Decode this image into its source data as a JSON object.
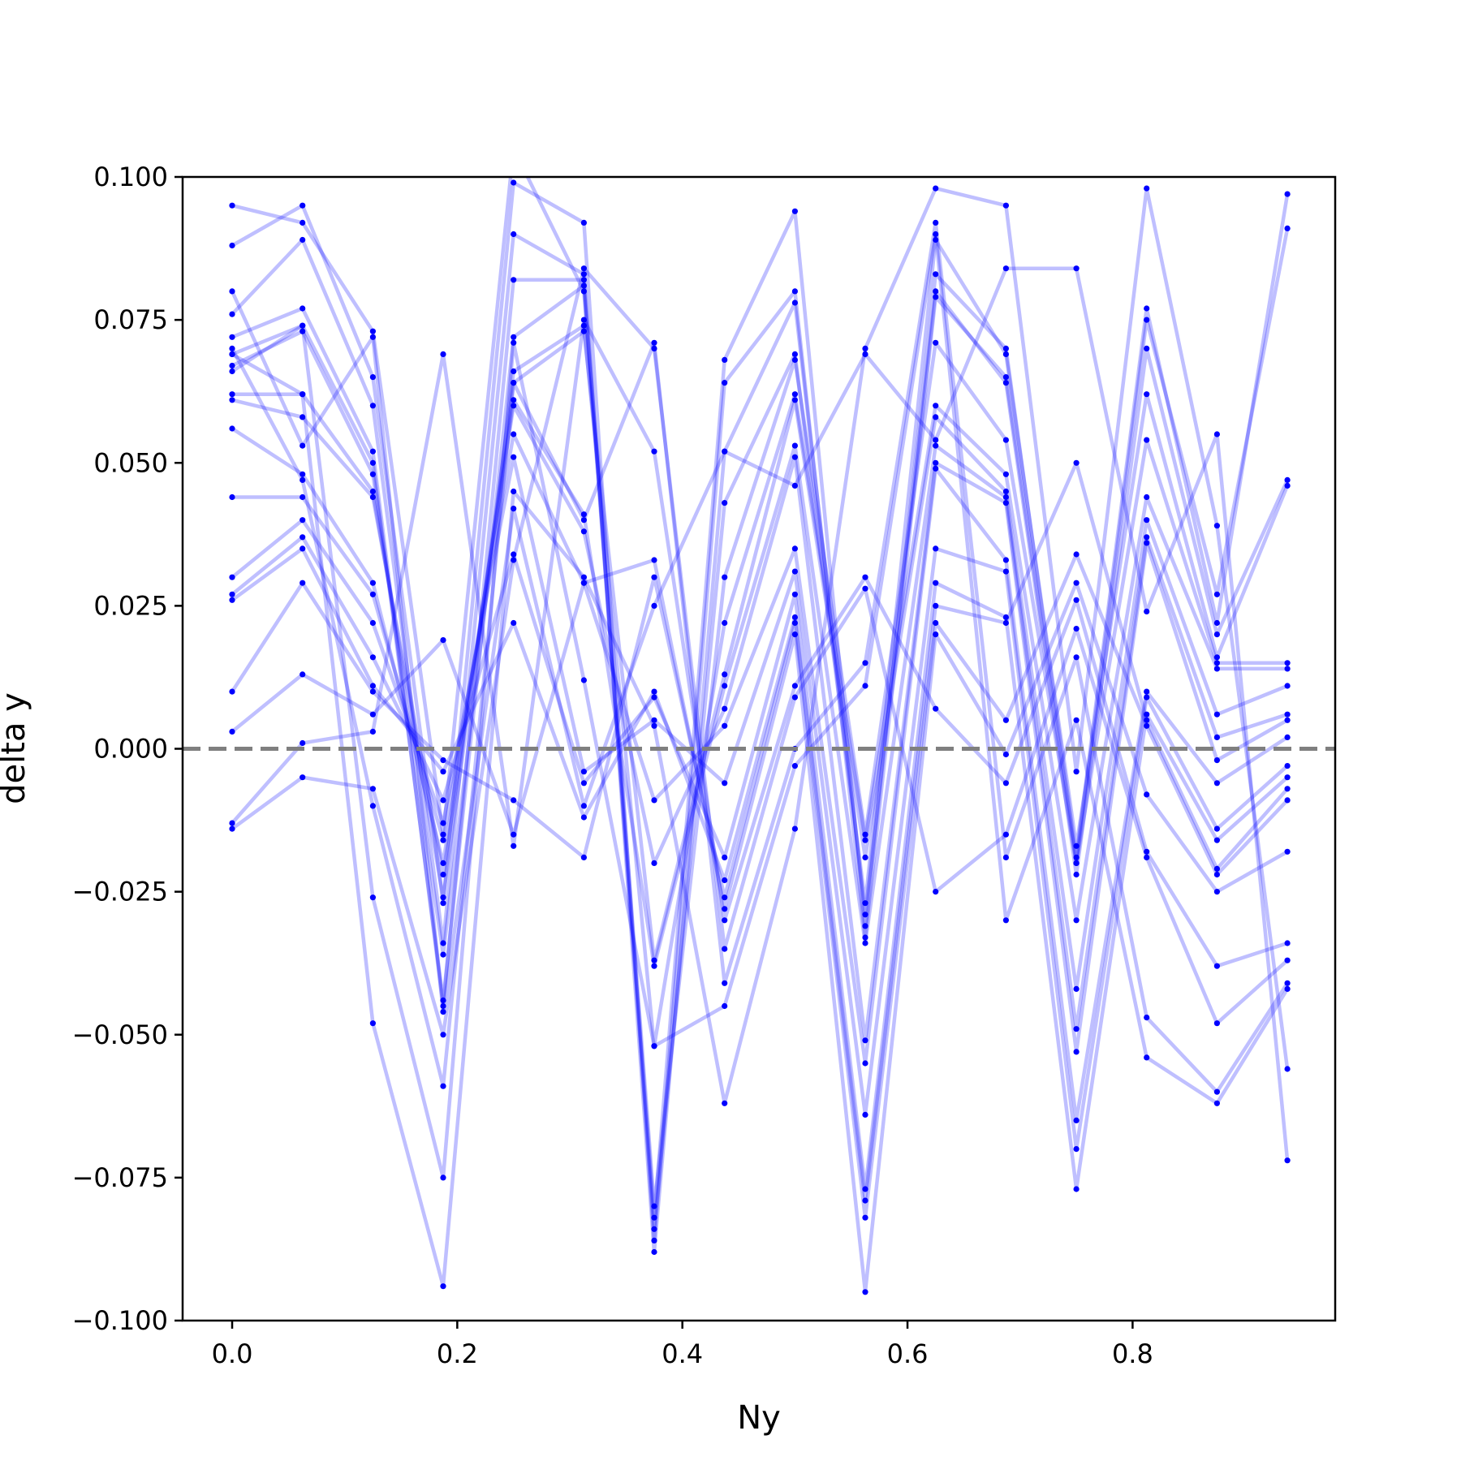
{
  "chart_data": {
    "type": "line",
    "xlabel": "Ny",
    "ylabel": "delta y",
    "xlim": [
      -0.044,
      0.98
    ],
    "ylim": [
      -0.1,
      0.1
    ],
    "x_ticks": [
      0.0,
      0.2,
      0.4,
      0.6,
      0.8
    ],
    "x_tick_labels": [
      "0.0",
      "0.2",
      "0.4",
      "0.6",
      "0.8"
    ],
    "y_ticks": [
      0.1,
      0.075,
      0.05,
      0.025,
      0.0,
      -0.025,
      -0.05,
      -0.075,
      -0.1
    ],
    "y_tick_labels": [
      "0.100",
      "0.075",
      "0.050",
      "0.025",
      "0.000",
      "−0.025",
      "−0.050",
      "−0.075",
      "−0.100"
    ],
    "reference_line": {
      "y": 0.0,
      "style": "dashed",
      "color": "#7f7f7f"
    },
    "line_color": "#0000ff",
    "line_alpha": 0.25,
    "x": [
      0.0,
      0.0625,
      0.125,
      0.1875,
      0.25,
      0.3125,
      0.375,
      0.4375,
      0.5,
      0.5625,
      0.625,
      0.6875,
      0.75,
      0.8125,
      0.875,
      0.9375
    ],
    "series": [
      {
        "values": [
          0.095,
          0.092,
          0.073,
          -0.015,
          0.105,
          0.08,
          -0.082,
          0.068,
          0.094,
          -0.031,
          0.083,
          0.07,
          -0.019,
          0.077,
          0.022,
          0.097
        ]
      },
      {
        "values": [
          0.088,
          0.095,
          0.065,
          -0.027,
          0.099,
          0.092,
          -0.086,
          0.064,
          0.08,
          -0.033,
          0.079,
          0.065,
          -0.02,
          0.075,
          0.027,
          0.091
        ]
      },
      {
        "values": [
          0.076,
          0.089,
          0.06,
          -0.034,
          0.09,
          0.083,
          -0.088,
          0.052,
          0.078,
          -0.029,
          0.08,
          0.064,
          -0.022,
          0.07,
          0.02,
          0.047
        ]
      },
      {
        "values": [
          0.072,
          0.077,
          0.052,
          -0.045,
          0.082,
          0.082,
          -0.084,
          0.043,
          0.069,
          -0.027,
          0.089,
          0.069,
          -0.017,
          0.062,
          0.016,
          0.046
        ]
      },
      {
        "values": [
          0.069,
          0.074,
          0.05,
          -0.044,
          0.072,
          0.081,
          -0.08,
          0.03,
          0.068,
          -0.015,
          0.071,
          0.054,
          -0.02,
          0.054,
          0.015,
          0.015
        ]
      },
      {
        "values": [
          0.067,
          0.073,
          0.048,
          -0.036,
          0.066,
          0.074,
          -0.052,
          0.022,
          0.062,
          -0.016,
          0.06,
          0.048,
          -0.03,
          0.044,
          0.014,
          0.014
        ]
      },
      {
        "values": [
          0.062,
          0.062,
          0.045,
          -0.026,
          0.064,
          0.073,
          -0.037,
          0.013,
          0.061,
          -0.019,
          0.058,
          0.045,
          -0.042,
          0.04,
          0.006,
          0.011
        ]
      },
      {
        "values": [
          0.061,
          0.058,
          0.044,
          -0.022,
          0.061,
          0.041,
          -0.038,
          0.011,
          0.053,
          -0.034,
          0.053,
          0.044,
          -0.049,
          0.037,
          0.002,
          0.006
        ]
      },
      {
        "values": [
          0.056,
          0.048,
          0.029,
          -0.02,
          0.06,
          0.038,
          -0.02,
          0.007,
          0.051,
          -0.051,
          0.05,
          0.043,
          -0.053,
          0.036,
          -0.002,
          0.005
        ]
      },
      {
        "values": [
          0.044,
          0.044,
          0.027,
          -0.016,
          0.055,
          0.029,
          -0.009,
          0.004,
          0.035,
          -0.055,
          0.049,
          0.033,
          -0.065,
          0.01,
          -0.006,
          0.002
        ]
      },
      {
        "values": [
          0.03,
          0.04,
          0.022,
          -0.013,
          0.051,
          -0.004,
          0.005,
          -0.006,
          0.031,
          -0.064,
          0.035,
          0.031,
          -0.07,
          0.009,
          -0.014,
          -0.003
        ]
      },
      {
        "values": [
          0.027,
          0.037,
          0.016,
          -0.009,
          0.034,
          -0.006,
          0.009,
          -0.019,
          0.027,
          -0.077,
          0.029,
          0.023,
          -0.077,
          0.006,
          -0.016,
          -0.005
        ]
      },
      {
        "values": [
          0.026,
          0.035,
          0.011,
          -0.004,
          0.022,
          -0.012,
          0.01,
          -0.023,
          0.023,
          -0.079,
          0.025,
          0.022,
          0.05,
          0.005,
          -0.021,
          -0.007
        ]
      },
      {
        "values": [
          0.01,
          0.029,
          0.01,
          -0.002,
          -0.009,
          -0.019,
          0.03,
          -0.026,
          0.022,
          -0.082,
          0.022,
          0.005,
          0.034,
          0.004,
          -0.022,
          -0.009
        ]
      },
      {
        "values": [
          0.003,
          0.013,
          0.006,
          0.019,
          -0.015,
          0.029,
          0.033,
          -0.028,
          0.02,
          -0.095,
          0.02,
          -0.001,
          0.029,
          -0.008,
          -0.025,
          -0.018
        ]
      },
      {
        "values": [
          -0.013,
          0.001,
          0.003,
          0.069,
          -0.017,
          0.075,
          0.052,
          -0.03,
          0.011,
          0.03,
          0.007,
          -0.006,
          0.026,
          -0.018,
          -0.038,
          -0.034
        ]
      },
      {
        "values": [
          -0.014,
          -0.005,
          -0.007,
          -0.05,
          0.033,
          0.084,
          0.07,
          -0.035,
          0.009,
          0.028,
          -0.025,
          -0.015,
          0.021,
          -0.019,
          -0.048,
          -0.037
        ]
      },
      {
        "values": [
          0.07,
          0.047,
          -0.01,
          -0.059,
          0.064,
          0.04,
          0.071,
          -0.041,
          0.0,
          0.015,
          0.092,
          -0.019,
          0.016,
          -0.047,
          -0.06,
          -0.041
        ]
      },
      {
        "values": [
          0.066,
          0.074,
          -0.026,
          -0.075,
          0.071,
          0.012,
          -0.052,
          -0.045,
          -0.003,
          0.011,
          0.09,
          -0.03,
          0.005,
          -0.054,
          -0.062,
          -0.042
        ]
      },
      {
        "values": [
          0.069,
          0.062,
          -0.048,
          -0.094,
          0.045,
          0.03,
          0.004,
          -0.062,
          -0.014,
          0.07,
          0.098,
          0.095,
          -0.004,
          0.098,
          0.039,
          -0.056
        ]
      },
      {
        "values": [
          0.08,
          0.053,
          0.072,
          -0.046,
          0.042,
          -0.01,
          0.025,
          0.052,
          0.046,
          0.069,
          0.054,
          0.084,
          0.084,
          0.024,
          0.055,
          -0.072
        ]
      }
    ]
  }
}
